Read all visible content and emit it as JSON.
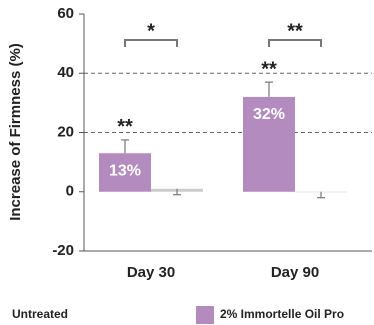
{
  "chart_data": {
    "type": "bar",
    "ylabel": "Increase of Firmness (%)",
    "categories": [
      "Day 30",
      "Day 90"
    ],
    "series": [
      {
        "name": "2% Immortelle Oil Pro",
        "color": "#b48bbf",
        "values": [
          13,
          32
        ],
        "errors": [
          4.5,
          5
        ],
        "value_labels": [
          "13%",
          "32%"
        ]
      },
      {
        "name": "Untreated",
        "color": "#cccccc",
        "values": [
          1,
          0
        ],
        "errors": [
          2,
          2
        ]
      }
    ],
    "ylim": [
      -20,
      60
    ],
    "yticks": [
      -20,
      0,
      20,
      40,
      60
    ],
    "annotations": [
      "**",
      "**",
      "*",
      "**"
    ],
    "grid": true
  }
}
